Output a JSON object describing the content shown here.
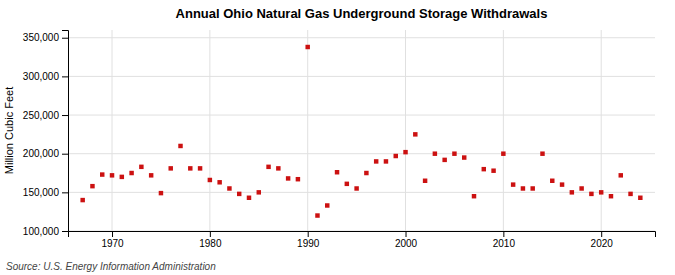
{
  "chart_data": {
    "type": "scatter",
    "title": "Annual Ohio Natural  Gas Underground Storage Withdrawals",
    "ylabel": "Million Cubic Feet",
    "source": "Source: U.S. Energy Information Administration",
    "x": [
      1967,
      1968,
      1969,
      1970,
      1971,
      1972,
      1973,
      1974,
      1975,
      1976,
      1977,
      1978,
      1979,
      1980,
      1981,
      1982,
      1983,
      1984,
      1985,
      1986,
      1987,
      1988,
      1989,
      1990,
      1991,
      1992,
      1993,
      1994,
      1995,
      1996,
      1997,
      1998,
      1999,
      2000,
      2001,
      2002,
      2003,
      2004,
      2005,
      2006,
      2007,
      2008,
      2009,
      2010,
      2011,
      2012,
      2013,
      2014,
      2015,
      2016,
      2017,
      2018,
      2019,
      2020,
      2021,
      2022,
      2023,
      2024
    ],
    "values": [
      140000,
      158000,
      173000,
      172000,
      170000,
      175000,
      183000,
      172000,
      149000,
      181000,
      210000,
      181000,
      181000,
      166000,
      163000,
      155000,
      148000,
      143000,
      150000,
      183000,
      181000,
      168000,
      167000,
      338000,
      120000,
      133000,
      176000,
      161000,
      155000,
      175000,
      190000,
      190000,
      197000,
      202000,
      225000,
      165000,
      200000,
      192000,
      200000,
      195000,
      145000,
      180000,
      178000,
      200000,
      160000,
      155000,
      155000,
      200000,
      165000,
      160000,
      150000,
      155000,
      148000,
      150000,
      145000,
      172000,
      148000,
      143000
    ],
    "color": "#cc1111",
    "marker": "square",
    "xlim": [
      1965.5,
      2025.5
    ],
    "xticks": [
      1970,
      1980,
      1990,
      2000,
      2010,
      2020
    ],
    "ylim": [
      100000,
      360000
    ],
    "yticks": [
      {
        "value": 100000,
        "label": "100,000"
      },
      {
        "value": 150000,
        "label": "150,000"
      },
      {
        "value": 200000,
        "label": "200,000"
      },
      {
        "value": 250000,
        "label": "250,000"
      },
      {
        "value": 300000,
        "label": "300,000"
      },
      {
        "value": 350000,
        "label": "350,000"
      }
    ],
    "grid": true
  }
}
